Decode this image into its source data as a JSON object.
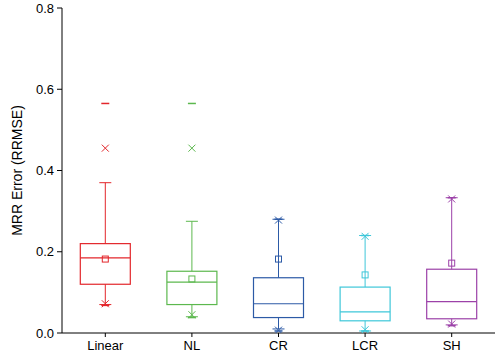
{
  "chart_data": {
    "type": "box",
    "y_label": "MRR Error (RRMSE)",
    "categories": [
      "Linear",
      "NL",
      "CR",
      "LCR",
      "SH"
    ],
    "colors": [
      "#e3262b",
      "#5cb84e",
      "#2c5aa6",
      "#3ec7d9",
      "#9c41a8"
    ],
    "min": [
      0.068,
      0.038,
      0.005,
      0.005,
      0.018
    ],
    "p1": [
      0.072,
      0.045,
      0.007,
      0.008,
      0.022
    ],
    "whisker_low": [
      0.07,
      0.04,
      0.01,
      0.005,
      0.02
    ],
    "q1": [
      0.12,
      0.07,
      0.038,
      0.03,
      0.035
    ],
    "median": [
      0.185,
      0.125,
      0.072,
      0.052,
      0.077
    ],
    "q3": [
      0.22,
      0.152,
      0.136,
      0.113,
      0.157
    ],
    "whisker_high": [
      0.37,
      0.275,
      0.28,
      0.24,
      0.333
    ],
    "p99": [
      0.455,
      0.455,
      0.278,
      0.238,
      0.33
    ],
    "max": [
      0.565,
      0.565,
      0.28,
      0.24,
      0.333
    ],
    "mean": [
      0.182,
      0.133,
      0.182,
      0.143,
      0.172
    ],
    "ylim": [
      0,
      0.8
    ],
    "yticks": [
      {
        "value": 0,
        "label": "0.0"
      },
      0.2,
      0.4,
      0.6,
      0.8
    ],
    "grid": false
  }
}
